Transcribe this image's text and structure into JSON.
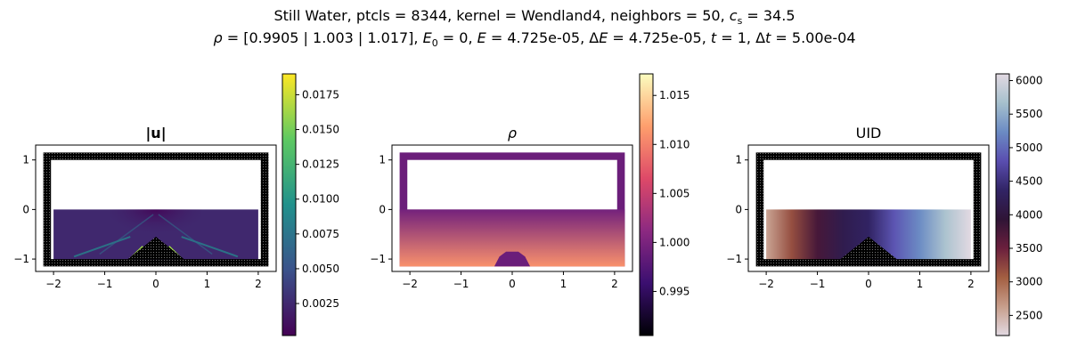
{
  "figure": {
    "title_line1": {
      "text": "Still Water, ptcls = 8344, kernel = Wendland4, neighbors = 50, ",
      "cs_symbol": "c",
      "cs_sub": "s",
      "cs_value": " = 34.5"
    },
    "title_line2": {
      "rho_symbol": "ρ",
      "rho_text": " = [0.9905 | 1.003 | 1.017], ",
      "E0_symbol": "E",
      "E0_sub": "0",
      "E0_text": " = 0, ",
      "E_symbol": "E",
      "E_text": " = 4.725e-05, Δ",
      "dE_symbol": "E",
      "dE_text": " = 4.725e-05, ",
      "t_symbol": "t",
      "t_text": " = 1, Δ",
      "dt_symbol": "t",
      "dt_text": " = 5.00e-04"
    }
  },
  "chart_data": [
    {
      "type": "heatmap",
      "title": "|u|",
      "field": "velocity magnitude",
      "colormap": "viridis",
      "colormap_stops": [
        "#440154",
        "#3b528b",
        "#21918c",
        "#5ec962",
        "#fde725"
      ],
      "x_ticks": [
        -2,
        -1,
        0,
        1,
        2
      ],
      "x_tick_labels": [
        "−2",
        "−1",
        "0",
        "1",
        "2"
      ],
      "y_ticks": [
        1,
        0,
        -1
      ],
      "y_tick_labels": [
        "1",
        "0",
        "−1"
      ],
      "xlim": [
        -2.35,
        2.35
      ],
      "ylim": [
        -1.25,
        1.3
      ],
      "colorbar_range": [
        0.0002,
        0.019
      ],
      "colorbar_ticks": [
        0.0025,
        0.005,
        0.0075,
        0.01,
        0.0125,
        0.015,
        0.0175
      ],
      "colorbar_tick_labels": [
        "0.0025",
        "0.0050",
        "0.0075",
        "0.0100",
        "0.0125",
        "0.0150",
        "0.0175"
      ],
      "boundary_color": "#000000",
      "fluid_region": {
        "x": [
          -2,
          2
        ],
        "y": [
          -1.1,
          0
        ]
      },
      "bump": {
        "apex": [
          0,
          -0.55
        ],
        "base": [
          -0.55,
          0.55
        ]
      }
    },
    {
      "type": "heatmap",
      "title": "ρ",
      "field": "density",
      "colormap": "magma",
      "colormap_stops": [
        "#000004",
        "#3b0f70",
        "#8c2981",
        "#de4968",
        "#fe9f6d",
        "#fcfdbf"
      ],
      "x_ticks": [
        -2,
        -1,
        0,
        1,
        2
      ],
      "x_tick_labels": [
        "−2",
        "−1",
        "0",
        "1",
        "2"
      ],
      "y_ticks": [
        1,
        0,
        -1
      ],
      "y_tick_labels": [
        "1",
        "0",
        "−1"
      ],
      "xlim": [
        -2.35,
        2.35
      ],
      "ylim": [
        -1.25,
        1.3
      ],
      "colorbar_range": [
        0.9905,
        1.0172
      ],
      "colorbar_ticks": [
        0.995,
        1.0,
        1.005,
        1.01,
        1.015
      ],
      "colorbar_tick_labels": [
        "0.995",
        "1.000",
        "1.005",
        "1.010",
        "1.015"
      ],
      "boundary_value": 0.999,
      "fluid_range": [
        0.9995,
        1.011
      ],
      "fluid_region": {
        "x": [
          -2.2,
          2.2
        ],
        "y": [
          -1.15,
          0
        ]
      },
      "bump": {
        "apex": [
          0,
          -0.85
        ],
        "base": [
          -0.35,
          0.35
        ]
      }
    },
    {
      "type": "heatmap",
      "title": "UID",
      "field": "particle id",
      "colormap": "twilight",
      "colormap_stops": [
        "#e2d9e2",
        "#c79e8b",
        "#a35e41",
        "#6b1f3d",
        "#2f1436",
        "#312465",
        "#5a4eb0",
        "#6b8bc4",
        "#a6c0cd",
        "#e2d9e2"
      ],
      "x_ticks": [
        -2,
        -1,
        0,
        1,
        2
      ],
      "x_tick_labels": [
        "−2",
        "−1",
        "0",
        "1",
        "2"
      ],
      "y_ticks": [
        1,
        0,
        -1
      ],
      "y_tick_labels": [
        "1",
        "0",
        "−1"
      ],
      "xlim": [
        -2.35,
        2.35
      ],
      "ylim": [
        -1.25,
        1.3
      ],
      "colorbar_range": [
        2200,
        6100
      ],
      "colorbar_ticks": [
        2500,
        3000,
        3500,
        4000,
        4500,
        5000,
        5500,
        6000
      ],
      "colorbar_tick_labels": [
        "2500",
        "3000",
        "3500",
        "4000",
        "4500",
        "5000",
        "5500",
        "6000"
      ],
      "boundary_color": "#000000",
      "fluid_region": {
        "x": [
          -2,
          2
        ],
        "y": [
          -1.1,
          0
        ]
      },
      "bump": {
        "apex": [
          0,
          -0.55
        ],
        "base": [
          -0.55,
          0.55
        ]
      }
    }
  ]
}
